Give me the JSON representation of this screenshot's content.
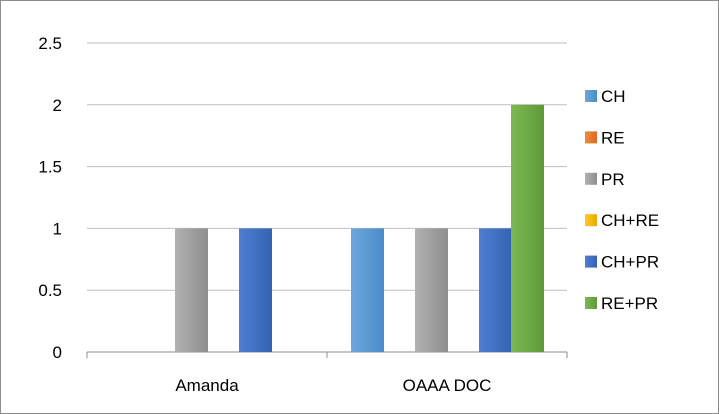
{
  "chart_data": {
    "type": "bar",
    "categories": [
      "Amanda",
      "OAAA DOC"
    ],
    "series": [
      {
        "name": "CH",
        "color": "#5b9bd5",
        "values": [
          0,
          1
        ]
      },
      {
        "name": "RE",
        "color": "#ed7d31",
        "values": [
          0,
          0
        ]
      },
      {
        "name": "PR",
        "color": "#a5a5a5",
        "values": [
          1,
          1
        ]
      },
      {
        "name": "CH+RE",
        "color": "#ffc000",
        "values": [
          0,
          0
        ]
      },
      {
        "name": "CH+PR",
        "color": "#4472c4",
        "values": [
          1,
          1
        ]
      },
      {
        "name": "RE+PR",
        "color": "#70ad47",
        "values": [
          0,
          2
        ]
      }
    ],
    "yticks": [
      "0",
      "0.5",
      "1",
      "1.5",
      "2",
      "2.5"
    ],
    "ylim": [
      0,
      2.5
    ],
    "grid": true,
    "legend": "right"
  }
}
